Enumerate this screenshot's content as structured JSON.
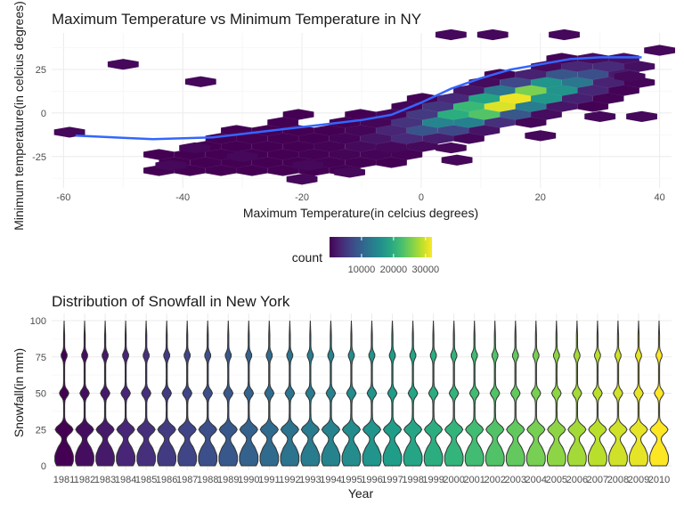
{
  "chart_data": [
    {
      "type": "hexbin",
      "title": "Maximum Temperature vs Minimum Temperature in NY",
      "xlabel": "Maximum Temperature(in celcius degrees)",
      "ylabel": "Minimum temperature(in celcius degrees)",
      "xlim": [
        -62,
        42
      ],
      "ylim": [
        -43,
        46
      ],
      "xticks": [
        -60,
        -40,
        -20,
        0,
        20,
        40
      ],
      "yticks": [
        -25,
        0,
        25
      ],
      "colormap": "viridis",
      "smooth_line": {
        "color": "#3366ff",
        "points": [
          [
            -58,
            -13
          ],
          [
            -45,
            -15
          ],
          [
            -35,
            -14
          ],
          [
            -25,
            -10
          ],
          [
            -15,
            -6
          ],
          [
            -10,
            -4
          ],
          [
            -5,
            -1
          ],
          [
            0,
            6
          ],
          [
            5,
            14
          ],
          [
            10,
            20
          ],
          [
            15,
            25
          ],
          [
            20,
            28
          ],
          [
            25,
            31
          ],
          [
            30,
            32
          ],
          [
            37,
            32
          ]
        ]
      },
      "legend": {
        "title": "count",
        "position": "bottom",
        "labels": [
          "10000",
          "20000",
          "30000"
        ],
        "values": [
          10000,
          20000,
          30000
        ],
        "range": [
          0,
          32000
        ]
      }
    },
    {
      "type": "violin",
      "title": "Distribution of Snowfall in New York",
      "xlabel": "Year",
      "ylabel": "Snowfall(in mm)",
      "ylim": [
        0,
        100
      ],
      "yticks": [
        0,
        25,
        50,
        75,
        100
      ],
      "colormap": "viridis",
      "categories": [
        "1981",
        "1982",
        "1983",
        "1984",
        "1985",
        "1986",
        "1987",
        "1988",
        "1989",
        "1990",
        "1991",
        "1992",
        "1993",
        "1994",
        "1995",
        "1996",
        "1997",
        "1998",
        "1999",
        "2000",
        "2001",
        "2002",
        "2003",
        "2004",
        "2005",
        "2006",
        "2007",
        "2008",
        "2009",
        "2010"
      ]
    }
  ]
}
